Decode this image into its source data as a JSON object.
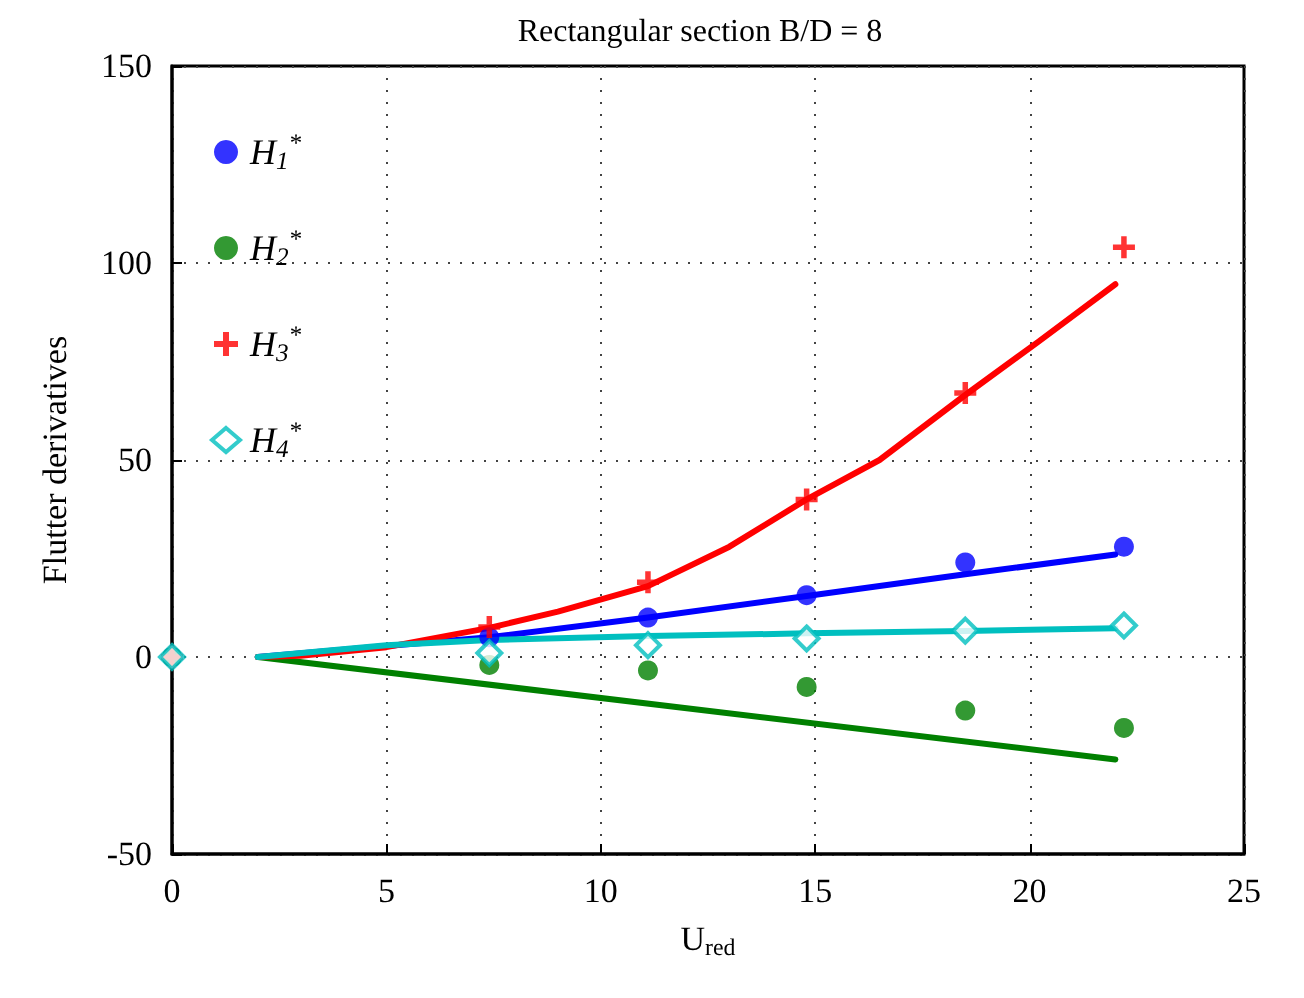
{
  "chart_data": {
    "type": "scatter",
    "title": "Rectangular section B/D = 8",
    "xlabel": "U$_{red}$",
    "ylabel": "Flutter derivatives",
    "xlim": [
      0,
      25
    ],
    "xticks": [
      0,
      5,
      10,
      15,
      20,
      25
    ],
    "ylim": [
      -50,
      150
    ],
    "yticks": [
      -50,
      0,
      50,
      100,
      150
    ],
    "grid": true,
    "legend": "top left",
    "series": [
      {
        "name": "H$_{1}$$^{*}$",
        "color": "#0000ff",
        "marker": "circle",
        "x": [
          0,
          7.4,
          11.1,
          14.8,
          18.5,
          22.2
        ],
        "values": [
          0,
          5,
          10,
          15.7,
          24,
          28
        ]
      },
      {
        "name": "H$_{2}$$^{*}$",
        "color": "#008000",
        "marker": "circle",
        "x": [
          0,
          7.4,
          11.1,
          14.8,
          18.5,
          22.2
        ],
        "values": [
          0,
          -2,
          -3.4,
          -7.6,
          -13.6,
          -18
        ]
      },
      {
        "name": "H$_{3}$$^{*}$",
        "color": "#ff0000",
        "marker": "cross",
        "x": [
          0,
          7.4,
          11.1,
          14.8,
          18.5,
          22.2
        ],
        "values": [
          0,
          7.6,
          19,
          40,
          67,
          104
        ]
      },
      {
        "name": "H$_{4}$$^{*}$",
        "color": "#00bfbf",
        "marker": "diamond",
        "x": [
          0,
          7.4,
          11.1,
          14.8,
          18.5,
          22.2
        ],
        "values": [
          0,
          1,
          3,
          4.7,
          6.7,
          8
        ]
      },
      {
        "type": "line",
        "color": "#0000ff",
        "marker": "none",
        "x": [
          2,
          7.4,
          11.1,
          14.8,
          18.5,
          22
        ],
        "values": [
          0,
          5,
          10,
          15.5,
          21,
          26
        ]
      },
      {
        "type": "line",
        "color": "#008000",
        "marker": "none",
        "x": [
          2,
          22
        ],
        "values": [
          0,
          -26
        ]
      },
      {
        "type": "line",
        "color": "#ff0000",
        "marker": "none",
        "x": [
          2,
          3,
          5,
          7.4,
          9,
          11.1,
          13,
          14.8,
          16.5,
          18.5,
          20.2,
          22
        ],
        "values": [
          0,
          0.3,
          2.5,
          7.4,
          11.5,
          18,
          28,
          40,
          50,
          66.5,
          80,
          94.6
        ]
      },
      {
        "type": "line",
        "color": "#00bfbf",
        "marker": "none",
        "x": [
          2,
          5,
          7.4,
          11.1,
          14.8,
          18.5,
          22
        ],
        "values": [
          0,
          3,
          4.3,
          5.3,
          6,
          6.6,
          7.3
        ]
      }
    ]
  }
}
